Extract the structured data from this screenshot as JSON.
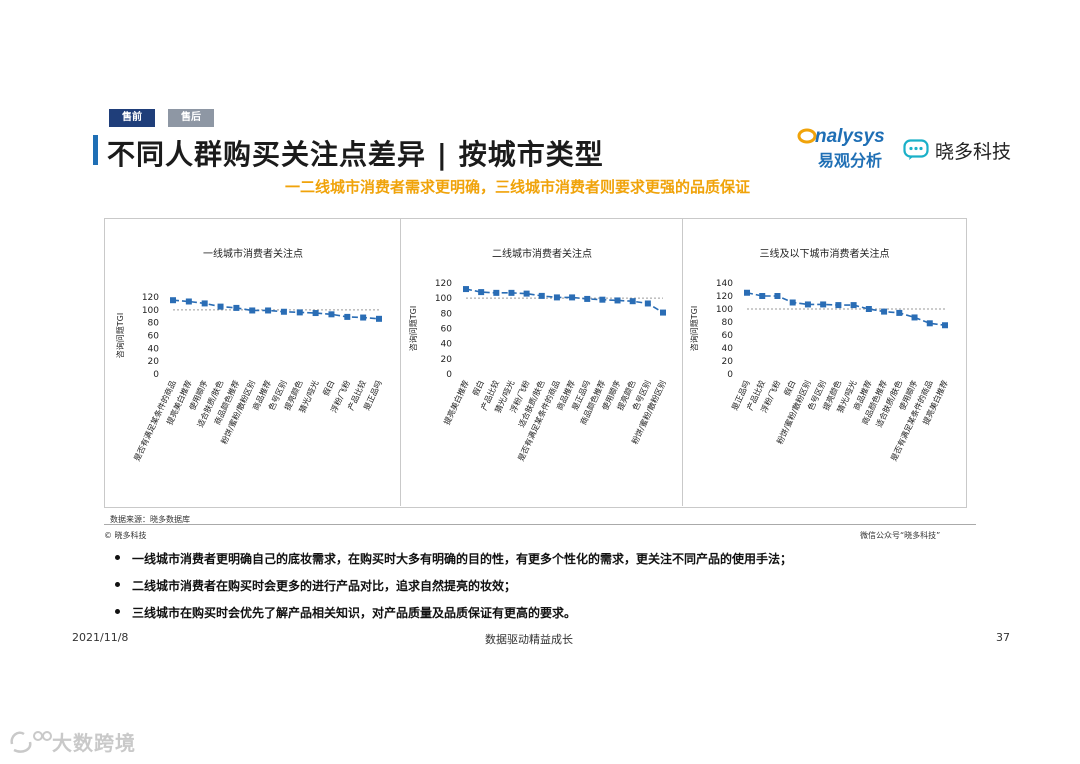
{
  "header": {
    "tabs": [
      {
        "label": "售前",
        "active": true
      },
      {
        "label": "售后",
        "active": false
      }
    ],
    "title": "不同人群购买关注点差异 | 按城市类型",
    "subtitle": "一二线城市消费者需求更明确，三线城市消费者则要求更强的品质保证"
  },
  "brands": {
    "analysys_en": "nalysys",
    "analysys_cn": "易观分析",
    "xiaoduo": "晓多科技"
  },
  "colors": {
    "tab_active": "#1f3e7a",
    "tab_inactive": "#8e97a4",
    "title_accent": "#1f6fb5",
    "subtitle": "#f0a30a",
    "series": "#2a6db5",
    "reference_line": "#9a9a9a"
  },
  "chart_data": [
    {
      "type": "line",
      "title": "一线城市消费者关注点",
      "ylabel": "咨询问题TGI",
      "ylim": [
        0,
        120
      ],
      "yticks": [
        0,
        20,
        40,
        60,
        80,
        100,
        120
      ],
      "reference": 100,
      "categories": [
        "是否有满足某条件的商品",
        "提亮美白推荐",
        "使用顺序",
        "适合肤质/肤色",
        "商品颜色推荐",
        "粉饼/蜜粉/散粉区别",
        "商品推荐",
        "色号区别",
        "提亮颜色",
        "猜光/哑光",
        "假白",
        "浮粉/飞粉",
        "产品比较",
        "是正品吗"
      ],
      "values": [
        115,
        113,
        110,
        105,
        103,
        99,
        99,
        97,
        96,
        95,
        93,
        89,
        88,
        86
      ]
    },
    {
      "type": "line",
      "title": "二线城市消费者关注点",
      "ylabel": "咨询问题TGI",
      "ylim": [
        0,
        120
      ],
      "yticks": [
        0,
        20,
        40,
        60,
        80,
        100,
        120
      ],
      "reference": 100,
      "categories": [
        "提亮美白推荐",
        "假白",
        "产品比较",
        "猜光/哑光",
        "浮粉/飞粉",
        "适合肤质/肤色",
        "是否有满足某条件的商品",
        "商品推荐",
        "是正品吗",
        "商品颜色推荐",
        "使用顺序",
        "提亮颜色",
        "色号区别",
        "粉饼/蜜粉/散粉区别"
      ],
      "values": [
        112,
        108,
        107,
        107,
        106,
        103,
        101,
        101,
        99,
        98,
        97,
        96,
        93,
        81
      ]
    },
    {
      "type": "line",
      "title": "三线及以下城市消费者关注点",
      "ylabel": "咨询问题TGI",
      "ylim": [
        0,
        140
      ],
      "yticks": [
        0,
        20,
        40,
        60,
        80,
        100,
        120,
        140
      ],
      "reference": 100,
      "categories": [
        "是正品吗",
        "产品比较",
        "浮粉/飞粉",
        "假白",
        "粉饼/蜜粉/散粉区别",
        "色号区别",
        "提亮颜色",
        "猜光/哑光",
        "商品推荐",
        "商品颜色推荐",
        "适合肤质/肤色",
        "使用顺序",
        "是否有满足某条件的商品",
        "提亮美白推荐"
      ],
      "values": [
        125,
        120,
        120,
        110,
        107,
        107,
        106,
        106,
        100,
        96,
        94,
        87,
        78,
        75
      ]
    }
  ],
  "source": "数据来源：晓多数据库",
  "copyright": "© 晓多科技",
  "wechat": "微信公众号“晓多科技”",
  "bullets": [
    "一线城市消费者更明确自己的底妆需求，在购买时大多有明确的目的性，有更多个性化的需求，更关注不同产品的使用手法；",
    "二线城市消费者在购买时会更多的进行产品对比，追求自然提亮的妆效；",
    "三线城市在购买时会优先了解产品相关知识，对产品质量及品质保证有更高的要求。"
  ],
  "footer": {
    "date": "2021/11/8",
    "center": "数据驱动精益成长",
    "page": "37"
  },
  "watermark": "大数跨境"
}
